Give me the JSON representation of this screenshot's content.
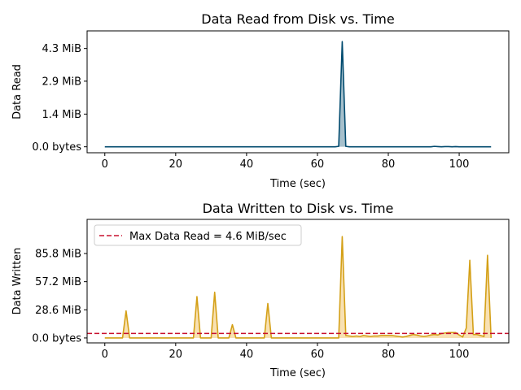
{
  "chart_data": [
    {
      "type": "area",
      "title": "Data Read from Disk vs. Time",
      "xlabel": "Time (sec)",
      "ylabel": "Data Read",
      "xlim": [
        -5,
        114
      ],
      "ylim": [
        -0.26,
        5.07
      ],
      "x_ticks": [
        0,
        20,
        40,
        60,
        80,
        100
      ],
      "y_ticks": [
        0,
        1.43,
        2.87,
        4.3
      ],
      "y_tick_labels": [
        "0.0 bytes",
        "1.4 MiB",
        "2.9 MiB",
        "4.3 MiB"
      ],
      "grid": false,
      "series": [
        {
          "color": "#004a6e",
          "points": [
            [
              0,
              0
            ],
            [
              1,
              0
            ],
            [
              2,
              0
            ],
            [
              3,
              0
            ],
            [
              4,
              0
            ],
            [
              5,
              0
            ],
            [
              6,
              0
            ],
            [
              7,
              0
            ],
            [
              8,
              0
            ],
            [
              9,
              0
            ],
            [
              10,
              0
            ],
            [
              11,
              0
            ],
            [
              12,
              0
            ],
            [
              13,
              0
            ],
            [
              14,
              0
            ],
            [
              15,
              0
            ],
            [
              16,
              0
            ],
            [
              17,
              0
            ],
            [
              18,
              0
            ],
            [
              19,
              0
            ],
            [
              20,
              0
            ],
            [
              21,
              0
            ],
            [
              22,
              0
            ],
            [
              23,
              0
            ],
            [
              24,
              0
            ],
            [
              25,
              0
            ],
            [
              26,
              0
            ],
            [
              27,
              0
            ],
            [
              28,
              0
            ],
            [
              29,
              0
            ],
            [
              30,
              0
            ],
            [
              31,
              0
            ],
            [
              32,
              0
            ],
            [
              33,
              0
            ],
            [
              34,
              0
            ],
            [
              35,
              0
            ],
            [
              36,
              0
            ],
            [
              37,
              0
            ],
            [
              38,
              0
            ],
            [
              39,
              0
            ],
            [
              40,
              0
            ],
            [
              41,
              0
            ],
            [
              42,
              0
            ],
            [
              43,
              0
            ],
            [
              44,
              0
            ],
            [
              45,
              0
            ],
            [
              46,
              0
            ],
            [
              47,
              0
            ],
            [
              48,
              0
            ],
            [
              49,
              0
            ],
            [
              50,
              0
            ],
            [
              51,
              0
            ],
            [
              52,
              0
            ],
            [
              53,
              0
            ],
            [
              54,
              0
            ],
            [
              55,
              0
            ],
            [
              56,
              0
            ],
            [
              57,
              0
            ],
            [
              58,
              0
            ],
            [
              59,
              0
            ],
            [
              60,
              0
            ],
            [
              61,
              0
            ],
            [
              62,
              0
            ],
            [
              63,
              0
            ],
            [
              64,
              0
            ],
            [
              65,
              0
            ],
            [
              66,
              0.02
            ],
            [
              67,
              4.6
            ],
            [
              68,
              0.02
            ],
            [
              69,
              0
            ],
            [
              70,
              0
            ],
            [
              71,
              0
            ],
            [
              72,
              0
            ],
            [
              73,
              0
            ],
            [
              74,
              0
            ],
            [
              75,
              0
            ],
            [
              76,
              0
            ],
            [
              77,
              0
            ],
            [
              78,
              0
            ],
            [
              79,
              0
            ],
            [
              80,
              0
            ],
            [
              81,
              0
            ],
            [
              82,
              0
            ],
            [
              83,
              0
            ],
            [
              84,
              0
            ],
            [
              85,
              0
            ],
            [
              86,
              0
            ],
            [
              87,
              0
            ],
            [
              88,
              0
            ],
            [
              89,
              0
            ],
            [
              90,
              0
            ],
            [
              91,
              0
            ],
            [
              92,
              0
            ],
            [
              93,
              0.02
            ],
            [
              94,
              0.01
            ],
            [
              95,
              0
            ],
            [
              96,
              0.01
            ],
            [
              97,
              0.01
            ],
            [
              98,
              0
            ],
            [
              99,
              0.01
            ],
            [
              100,
              0
            ],
            [
              101,
              0
            ],
            [
              102,
              0
            ],
            [
              103,
              0
            ],
            [
              104,
              0
            ],
            [
              105,
              0
            ],
            [
              106,
              0
            ],
            [
              107,
              0
            ],
            [
              108,
              0
            ],
            [
              109,
              0
            ]
          ]
        }
      ]
    },
    {
      "type": "area",
      "title": "Data Written to Disk vs. Time",
      "xlabel": "Time (sec)",
      "ylabel": "Data Written",
      "xlim": [
        -5,
        114
      ],
      "ylim": [
        -5,
        120.5
      ],
      "x_ticks": [
        0,
        20,
        40,
        60,
        80,
        100
      ],
      "y_ticks": [
        0,
        28.6,
        57.2,
        85.8
      ],
      "y_tick_labels": [
        "0.0 bytes",
        "28.6 MiB",
        "57.2 MiB",
        "85.8 MiB"
      ],
      "grid": false,
      "legend_position": "upper-left",
      "legend": [
        "Max Data Read = 4.6 MiB/sec"
      ],
      "hline": {
        "y": 4.6,
        "color": "#c8102e"
      },
      "series": [
        {
          "color": "#d4a017",
          "fill": "#f6d79a",
          "points": [
            [
              0,
              0
            ],
            [
              1,
              0
            ],
            [
              2,
              0
            ],
            [
              3,
              0
            ],
            [
              4,
              0
            ],
            [
              5,
              0
            ],
            [
              6,
              27.5
            ],
            [
              7,
              0
            ],
            [
              8,
              0
            ],
            [
              9,
              0
            ],
            [
              10,
              0
            ],
            [
              11,
              0
            ],
            [
              12,
              0
            ],
            [
              13,
              0
            ],
            [
              14,
              0
            ],
            [
              15,
              0
            ],
            [
              16,
              0
            ],
            [
              17,
              0
            ],
            [
              18,
              0
            ],
            [
              19,
              0
            ],
            [
              20,
              0
            ],
            [
              21,
              0
            ],
            [
              22,
              0
            ],
            [
              23,
              0
            ],
            [
              24,
              0
            ],
            [
              25,
              0
            ],
            [
              26,
              42
            ],
            [
              27,
              0
            ],
            [
              28,
              0
            ],
            [
              29,
              0
            ],
            [
              30,
              0
            ],
            [
              31,
              46.5
            ],
            [
              32,
              0
            ],
            [
              33,
              0
            ],
            [
              34,
              0
            ],
            [
              35,
              0
            ],
            [
              36,
              13.5
            ],
            [
              37,
              0
            ],
            [
              38,
              0
            ],
            [
              39,
              0
            ],
            [
              40,
              0
            ],
            [
              41,
              0
            ],
            [
              42,
              0
            ],
            [
              43,
              0
            ],
            [
              44,
              0
            ],
            [
              45,
              0
            ],
            [
              46,
              35
            ],
            [
              47,
              0
            ],
            [
              48,
              0
            ],
            [
              49,
              0
            ],
            [
              50,
              0
            ],
            [
              51,
              0
            ],
            [
              52,
              0
            ],
            [
              53,
              0
            ],
            [
              54,
              0
            ],
            [
              55,
              0
            ],
            [
              56,
              0
            ],
            [
              57,
              0
            ],
            [
              58,
              0
            ],
            [
              59,
              0
            ],
            [
              60,
              0
            ],
            [
              61,
              0
            ],
            [
              62,
              0
            ],
            [
              63,
              0
            ],
            [
              64,
              0
            ],
            [
              65,
              0
            ],
            [
              66,
              0
            ],
            [
              67,
              103
            ],
            [
              68,
              2.5
            ],
            [
              69,
              2
            ],
            [
              70,
              1.5
            ],
            [
              71,
              2
            ],
            [
              72,
              1.5
            ],
            [
              73,
              2.5
            ],
            [
              74,
              2
            ],
            [
              75,
              1.5
            ],
            [
              76,
              2
            ],
            [
              77,
              2
            ],
            [
              78,
              2.5
            ],
            [
              79,
              2.5
            ],
            [
              80,
              2.5
            ],
            [
              81,
              2.5
            ],
            [
              82,
              2
            ],
            [
              83,
              1.5
            ],
            [
              84,
              1
            ],
            [
              85,
              1.5
            ],
            [
              86,
              2.5
            ],
            [
              87,
              3.5
            ],
            [
              88,
              3
            ],
            [
              89,
              2
            ],
            [
              90,
              1.5
            ],
            [
              91,
              2
            ],
            [
              92,
              3
            ],
            [
              93,
              3.5
            ],
            [
              94,
              3
            ],
            [
              95,
              4.5
            ],
            [
              96,
              5
            ],
            [
              97,
              5.5
            ],
            [
              98,
              5.5
            ],
            [
              99,
              5.5
            ],
            [
              100,
              3
            ],
            [
              101,
              1
            ],
            [
              102,
              10
            ],
            [
              103,
              79
            ],
            [
              104,
              3.5
            ],
            [
              105,
              3.5
            ],
            [
              106,
              2.5
            ],
            [
              107,
              1.5
            ],
            [
              108,
              84
            ],
            [
              109,
              0
            ]
          ]
        }
      ]
    }
  ]
}
